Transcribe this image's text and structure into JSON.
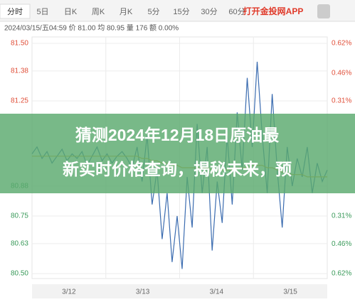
{
  "tabs": [
    "分时",
    "5日",
    "日K",
    "周K",
    "月K",
    "5分",
    "15分",
    "30分",
    "60分"
  ],
  "app_button": "打开金投网APP",
  "info": "2024/03/15/五04:59 价 81.00 均 80.95 量 176 额 0.00%",
  "banner": {
    "lines": [
      "猜测2024年12月18日原油最",
      "新实时价格查询，揭秘未来，预"
    ]
  },
  "chart_data": {
    "type": "line",
    "ylim": [
      80.5,
      81.5
    ],
    "yticks": [
      {
        "value": 81.5,
        "label": "81.50"
      },
      81.38,
      81.25,
      80.88,
      80.75,
      80.63,
      {
        "value": 80.5,
        "label": "80.50"
      }
    ],
    "y2lim": [
      -0.62,
      0.62
    ],
    "y2ticks": [
      {
        "value": 0.62,
        "label": "0.62%"
      },
      {
        "value": 0.46,
        "label": "0.46%"
      },
      {
        "value": 0.31,
        "label": "0.31%"
      },
      {
        "value": -0.31,
        "label": "0.31%"
      },
      {
        "value": -0.46,
        "label": "0.46%"
      },
      {
        "value": -0.62,
        "label": "0.62%"
      }
    ],
    "day_labels": [
      "3/12",
      "3/13",
      "3/14",
      "3/15"
    ],
    "series": [
      {
        "color": "#3b6cb0",
        "values": [
          81.02,
          81.05,
          81.0,
          81.03,
          80.98,
          81.01,
          81.04,
          80.99,
          81.02,
          81.0,
          81.03,
          80.97,
          81.01,
          81.05,
          80.99,
          81.02,
          80.98,
          81.01,
          81.03,
          81.0,
          80.96,
          81.05,
          80.9,
          81.1,
          80.8,
          80.95,
          80.65,
          80.85,
          80.55,
          80.75,
          80.52,
          80.92,
          80.7,
          81.15,
          80.85,
          81.05,
          80.6,
          80.9,
          80.72,
          81.1,
          80.8,
          81.2,
          80.95,
          81.35,
          81.05,
          81.42,
          81.1,
          80.85,
          81.28,
          80.95,
          80.7,
          81.05,
          80.88,
          81.0,
          80.92,
          81.05,
          80.85,
          80.98,
          80.9,
          80.95
        ]
      },
      {
        "color": "#d8a830",
        "values": [
          81.01,
          81.01,
          81.01,
          81.01,
          81.01,
          81.01,
          81.01,
          81.01,
          81.01,
          81.01,
          81.01,
          81.01,
          81.01,
          81.01,
          81.01,
          81.01,
          81.01,
          81.01,
          81.01,
          81.01,
          81.01,
          81.01,
          81.0,
          81.0,
          80.99,
          80.99,
          80.98,
          80.98,
          80.97,
          80.97,
          80.96,
          80.96,
          80.96,
          80.96,
          80.96,
          80.96,
          80.95,
          80.95,
          80.95,
          80.95,
          80.95,
          80.96,
          80.96,
          80.96,
          80.97,
          80.97,
          80.97,
          80.96,
          80.96,
          80.95,
          80.94,
          80.94,
          80.93,
          80.93,
          80.93,
          80.92,
          80.92,
          80.92,
          80.92,
          80.92
        ]
      }
    ]
  }
}
